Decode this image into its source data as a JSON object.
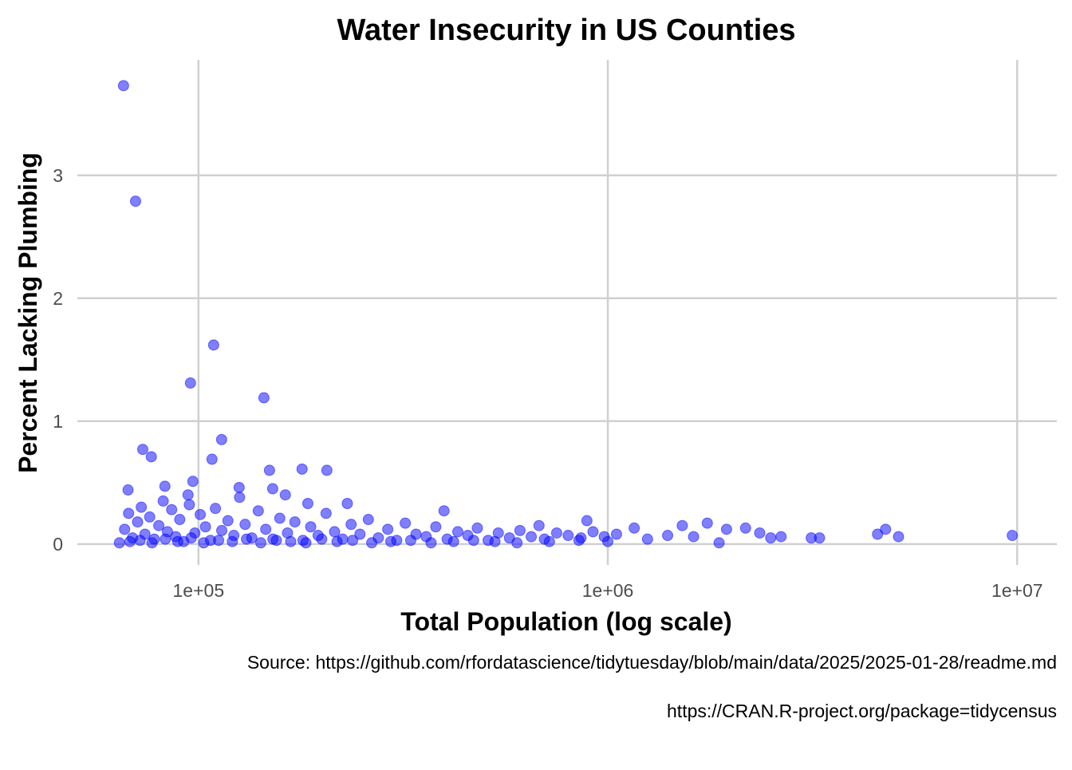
{
  "chart_data": {
    "type": "scatter",
    "title": "Water Insecurity in US Counties",
    "x_label": "Total Population (log scale)",
    "y_label": "Percent Lacking Plumbing",
    "caption": [
      "Source: https://github.com/rfordatascience/tidytuesday/blob/main/data/2025/2025-01-28/readme.md",
      "https://CRAN.R-project.org/package=tidycensus"
    ],
    "x_scale": "log",
    "grid": true,
    "color": "#0000ff",
    "xlim": [
      50600,
      12500000
    ],
    "ylim": [
      -0.17,
      3.94
    ],
    "xticks": [
      {
        "value": 100000,
        "label": "1e+05"
      },
      {
        "value": 1000000,
        "label": "1e+06"
      },
      {
        "value": 10000000,
        "label": "1e+07"
      }
    ],
    "yticks": [
      0,
      1,
      2,
      3
    ],
    "x": [
      65600,
      70200,
      108900,
      95600,
      144500,
      113900,
      73100,
      76700,
      107900,
      149100,
      179100,
      205900,
      96900,
      67300,
      82800,
      151800,
      125700,
      889000,
      1750000,
      398000,
      4770000,
      4560000,
      5130000,
      9730000,
      3140000,
      3290000,
      2170000,
      1950000,
      1870000,
      1520000,
      1160000,
      679000,
      231000,
      185000,
      163000,
      94300,
      64100,
      66000,
      67500,
      69000,
      71000,
      72500,
      74000,
      76000,
      78000,
      80000,
      82000,
      84000,
      86000,
      88000,
      90000,
      92000,
      95000,
      98000,
      101000,
      104000,
      107000,
      110000,
      114000,
      118000,
      122000,
      126000,
      130000,
      135000,
      140000,
      146000,
      152000,
      158000,
      165000,
      172000,
      180000,
      188000,
      196000,
      205000,
      215000,
      225000,
      236000,
      248000,
      260000,
      275000,
      290000,
      305000,
      320000,
      340000,
      360000,
      380000,
      405000,
      430000,
      455000,
      480000,
      510000,
      540000,
      575000,
      610000,
      650000,
      700000,
      750000,
      800000,
      860000,
      920000,
      980000,
      1050000,
      1250000,
      1400000,
      1620000,
      2350000,
      2500000,
      2650000,
      68000,
      72000,
      77000,
      83000,
      89000,
      96000,
      103000,
      112000,
      121000,
      131000,
      142000,
      155000,
      168000,
      183000,
      200000,
      218000,
      238000,
      265000,
      295000,
      330000,
      370000,
      420000,
      470000,
      530000,
      600000,
      720000,
      850000,
      1000000
    ],
    "values": [
      3.73,
      2.79,
      1.62,
      1.31,
      1.19,
      0.85,
      0.77,
      0.71,
      0.69,
      0.6,
      0.61,
      0.6,
      0.51,
      0.44,
      0.47,
      0.45,
      0.46,
      0.19,
      0.17,
      0.27,
      0.12,
      0.08,
      0.06,
      0.07,
      0.05,
      0.05,
      0.13,
      0.12,
      0.01,
      0.15,
      0.13,
      0.15,
      0.33,
      0.33,
      0.4,
      0.4,
      0.01,
      0.12,
      0.25,
      0.05,
      0.18,
      0.3,
      0.08,
      0.22,
      0.04,
      0.15,
      0.35,
      0.1,
      0.28,
      0.06,
      0.2,
      0.02,
      0.32,
      0.09,
      0.24,
      0.14,
      0.03,
      0.29,
      0.11,
      0.19,
      0.07,
      0.38,
      0.16,
      0.05,
      0.27,
      0.12,
      0.04,
      0.21,
      0.09,
      0.18,
      0.03,
      0.14,
      0.07,
      0.25,
      0.1,
      0.04,
      0.16,
      0.08,
      0.2,
      0.05,
      0.12,
      0.03,
      0.17,
      0.08,
      0.06,
      0.14,
      0.04,
      0.1,
      0.07,
      0.13,
      0.03,
      0.09,
      0.05,
      0.11,
      0.06,
      0.04,
      0.09,
      0.07,
      0.05,
      0.1,
      0.06,
      0.08,
      0.04,
      0.07,
      0.06,
      0.09,
      0.05,
      0.06,
      0.02,
      0.03,
      0.01,
      0.04,
      0.02,
      0.05,
      0.01,
      0.03,
      0.02,
      0.04,
      0.01,
      0.03,
      0.02,
      0.01,
      0.04,
      0.02,
      0.03,
      0.01,
      0.02,
      0.03,
      0.01,
      0.02,
      0.03,
      0.02,
      0.01,
      0.02,
      0.03,
      0.02
    ]
  }
}
